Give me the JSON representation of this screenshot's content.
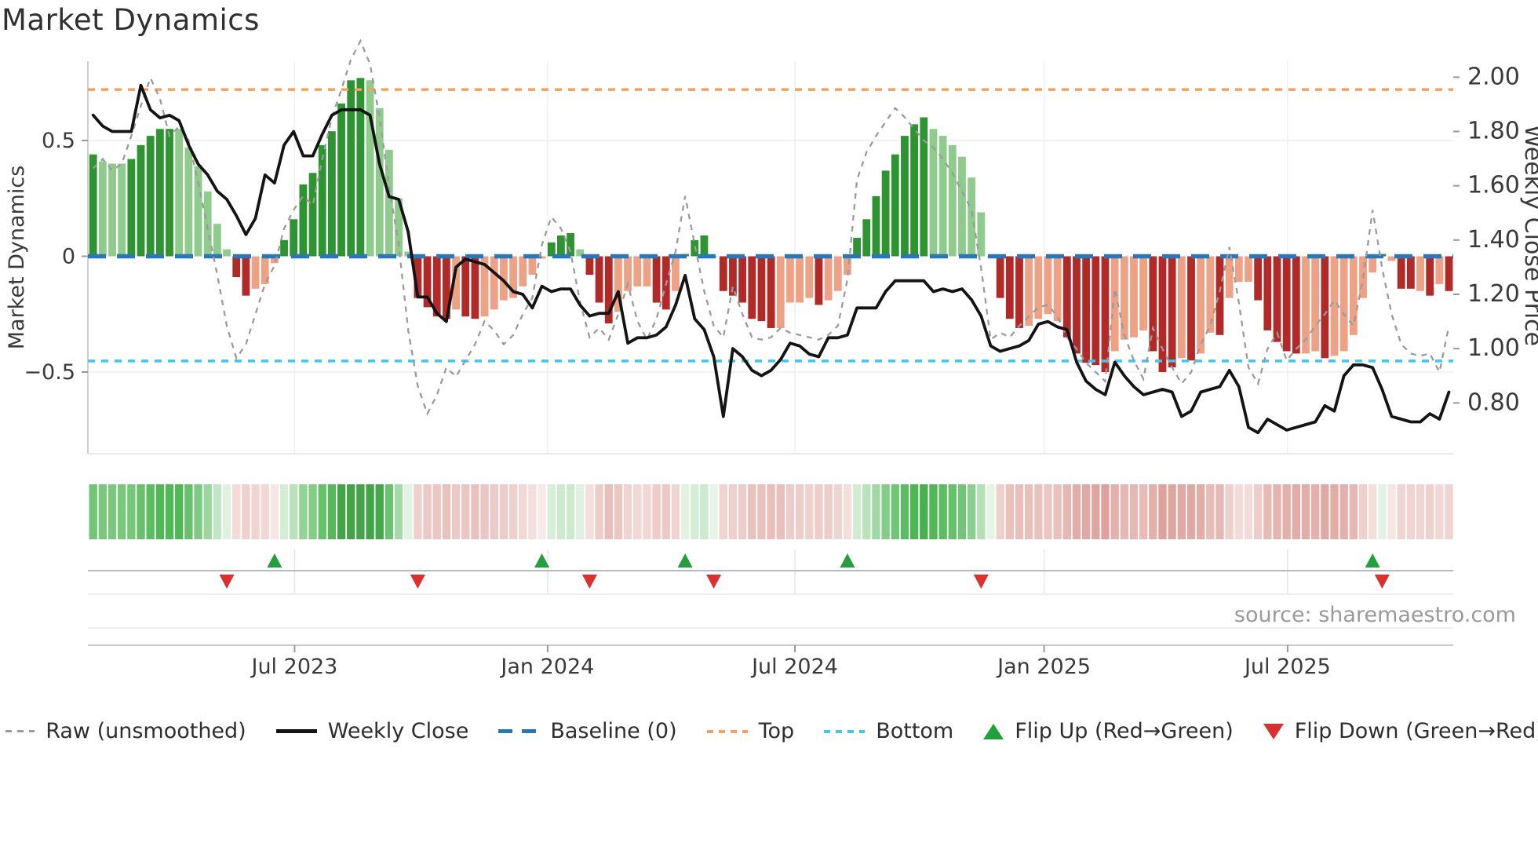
{
  "title": "Market Dynamics",
  "source": "source: sharemaestro.com",
  "left_axis": {
    "label": "Market Dynamics",
    "ticks": [
      {
        "value": 0.5,
        "label": "0.5"
      },
      {
        "value": 0.0,
        "label": "0"
      },
      {
        "value": -0.5,
        "label": "−0.5"
      }
    ],
    "ylim": [
      -0.85,
      0.84
    ]
  },
  "right_axis": {
    "label": "Weekly Close Price",
    "ticks": [
      {
        "value": 2.0,
        "label": "2.00"
      },
      {
        "value": 1.8,
        "label": "1.80"
      },
      {
        "value": 1.6,
        "label": "1.60"
      },
      {
        "value": 1.4,
        "label": "1.40"
      },
      {
        "value": 1.2,
        "label": "1.20"
      },
      {
        "value": 1.0,
        "label": "1.00"
      },
      {
        "value": 0.8,
        "label": "0.80"
      }
    ],
    "ylim": [
      0.61,
      2.06
    ]
  },
  "x_axis": {
    "ticks": [
      {
        "label": "Jul 2023",
        "week_index": 21.1
      },
      {
        "label": "Jan 2024",
        "week_index": 47.6
      },
      {
        "label": "Jul 2024",
        "week_index": 73.5
      },
      {
        "label": "Jan 2025",
        "week_index": 99.6
      },
      {
        "label": "Jul 2025",
        "week_index": 125.1
      }
    ]
  },
  "reference_lines": {
    "baseline": {
      "label": "Baseline (0)",
      "value": 0.0,
      "color": "#2878b8"
    },
    "top": {
      "label": "Top",
      "value": 0.72,
      "color": "#f2a25c"
    },
    "bottom": {
      "label": "Bottom",
      "value": -0.452,
      "color": "#3fc8e9"
    }
  },
  "colors": {
    "bar_strong_green": "#2e9331",
    "bar_weak_green": "#8fcb8c",
    "bar_strong_red": "#b22a28",
    "bar_weak_red": "#eda185",
    "close_line": "#141414",
    "raw_line": "#9b9b9b",
    "flip_up": "#22a03c",
    "flip_down": "#dc2f2f"
  },
  "legend": {
    "items": [
      {
        "label": "Raw (unsmoothed)"
      },
      {
        "label": "Weekly Close"
      },
      {
        "label": "Baseline (0)"
      },
      {
        "label": "Top"
      },
      {
        "label": "Bottom"
      },
      {
        "label": "Flip Up (Red→Green)"
      },
      {
        "label": "Flip Down (Green→Red)"
      }
    ]
  },
  "chart_data": {
    "type": "bar+line combo with heatmap ribbon and flip markers",
    "x_unit": "weekly bars, index 0..142 (≈ Feb 2023 → Nov 2025)",
    "bars_axis": "left (Market Dynamics, −0.85..0.84)",
    "line_axis": "right (Weekly Close Price, 0.61..2.06)",
    "bars": [
      0.44,
      0.41,
      0.4,
      0.4,
      0.42,
      0.48,
      0.52,
      0.55,
      0.55,
      0.55,
      0.47,
      0.39,
      0.28,
      0.14,
      0.03,
      -0.09,
      -0.17,
      -0.14,
      -0.12,
      -0.03,
      0.07,
      0.16,
      0.31,
      0.36,
      0.48,
      0.54,
      0.66,
      0.76,
      0.77,
      0.76,
      0.64,
      0.46,
      0.25,
      0.02,
      -0.18,
      -0.22,
      -0.26,
      -0.27,
      -0.23,
      -0.26,
      -0.27,
      -0.26,
      -0.23,
      -0.19,
      -0.18,
      -0.13,
      -0.08,
      -0.01,
      0.06,
      0.09,
      0.1,
      0.03,
      -0.08,
      -0.2,
      -0.29,
      -0.24,
      -0.15,
      -0.13,
      -0.13,
      -0.2,
      -0.23,
      -0.15,
      0.01,
      0.07,
      0.09,
      0.0,
      -0.15,
      -0.17,
      -0.2,
      -0.27,
      -0.28,
      -0.31,
      -0.31,
      -0.2,
      -0.2,
      -0.18,
      -0.21,
      -0.19,
      -0.15,
      -0.08,
      0.08,
      0.16,
      0.26,
      0.37,
      0.44,
      0.52,
      0.57,
      0.6,
      0.55,
      0.52,
      0.48,
      0.43,
      0.34,
      0.19,
      0.0,
      -0.18,
      -0.27,
      -0.31,
      -0.3,
      -0.27,
      -0.25,
      -0.28,
      -0.35,
      -0.42,
      -0.46,
      -0.47,
      -0.5,
      -0.41,
      -0.36,
      -0.35,
      -0.32,
      -0.41,
      -0.5,
      -0.48,
      -0.44,
      -0.45,
      -0.42,
      -0.33,
      -0.34,
      -0.18,
      -0.11,
      -0.11,
      -0.19,
      -0.32,
      -0.37,
      -0.41,
      -0.42,
      -0.42,
      -0.41,
      -0.44,
      -0.43,
      -0.41,
      -0.34,
      -0.18,
      -0.07,
      0.01,
      -0.02,
      -0.14,
      -0.14,
      -0.15,
      -0.17,
      -0.12,
      -0.15
    ],
    "bar_strength": [
      "s",
      "w",
      "w",
      "w",
      "s",
      "s",
      "s",
      "s",
      "s",
      "w",
      "w",
      "w",
      "w",
      "w",
      "w",
      "s",
      "s",
      "w",
      "w",
      "w",
      "s",
      "s",
      "s",
      "s",
      "s",
      "s",
      "s",
      "s",
      "s",
      "w",
      "w",
      "w",
      "w",
      "w",
      "s",
      "s",
      "s",
      "s",
      "w",
      "s",
      "s",
      "w",
      "w",
      "w",
      "w",
      "w",
      "w",
      "w",
      "s",
      "s",
      "s",
      "w",
      "s",
      "s",
      "s",
      "w",
      "w",
      "w",
      "w",
      "s",
      "s",
      "w",
      "s",
      "s",
      "s",
      "w",
      "s",
      "s",
      "s",
      "s",
      "s",
      "s",
      "w",
      "w",
      "w",
      "w",
      "s",
      "w",
      "w",
      "w",
      "s",
      "s",
      "s",
      "s",
      "s",
      "s",
      "s",
      "s",
      "w",
      "w",
      "w",
      "w",
      "w",
      "w",
      "w",
      "s",
      "s",
      "s",
      "w",
      "w",
      "w",
      "w",
      "s",
      "s",
      "s",
      "s",
      "s",
      "w",
      "w",
      "w",
      "w",
      "s",
      "s",
      "s",
      "w",
      "s",
      "w",
      "w",
      "s",
      "w",
      "w",
      "w",
      "s",
      "s",
      "s",
      "s",
      "s",
      "w",
      "w",
      "s",
      "w",
      "w",
      "w",
      "w",
      "w",
      "s",
      "w",
      "s",
      "s",
      "w",
      "s",
      "w",
      "s"
    ],
    "weekly_close": [
      1.86,
      1.82,
      1.8,
      1.8,
      1.8,
      1.97,
      1.88,
      1.85,
      1.86,
      1.84,
      1.75,
      1.68,
      1.64,
      1.58,
      1.55,
      1.49,
      1.42,
      1.48,
      1.64,
      1.61,
      1.75,
      1.8,
      1.71,
      1.71,
      1.79,
      1.86,
      1.88,
      1.88,
      1.88,
      1.86,
      1.68,
      1.56,
      1.55,
      1.43,
      1.19,
      1.19,
      1.13,
      1.1,
      1.3,
      1.33,
      1.32,
      1.31,
      1.28,
      1.25,
      1.21,
      1.2,
      1.15,
      1.23,
      1.21,
      1.22,
      1.22,
      1.16,
      1.12,
      1.13,
      1.13,
      1.21,
      1.02,
      1.04,
      1.04,
      1.05,
      1.08,
      1.16,
      1.27,
      1.11,
      1.07,
      0.97,
      0.75,
      1.0,
      0.97,
      0.92,
      0.9,
      0.92,
      0.96,
      1.02,
      1.01,
      0.98,
      0.97,
      1.04,
      1.04,
      1.05,
      1.15,
      1.15,
      1.15,
      1.21,
      1.25,
      1.25,
      1.25,
      1.25,
      1.21,
      1.22,
      1.21,
      1.22,
      1.18,
      1.12,
      1.01,
      0.99,
      1.0,
      1.01,
      1.03,
      1.09,
      1.1,
      1.08,
      1.07,
      0.95,
      0.88,
      0.85,
      0.83,
      0.95,
      0.9,
      0.86,
      0.83,
      0.84,
      0.85,
      0.84,
      0.75,
      0.77,
      0.84,
      0.85,
      0.86,
      0.92,
      0.86,
      0.71,
      0.69,
      0.74,
      0.72,
      0.7,
      0.71,
      0.72,
      0.73,
      0.79,
      0.77,
      0.9,
      0.94,
      0.94,
      0.93,
      0.85,
      0.75,
      0.74,
      0.73,
      0.73,
      0.76,
      0.74,
      0.84
    ],
    "raw": [
      0.38,
      0.42,
      0.37,
      0.4,
      0.52,
      0.65,
      0.77,
      0.68,
      0.52,
      0.56,
      0.5,
      0.32,
      0.12,
      -0.08,
      -0.3,
      -0.44,
      -0.38,
      -0.25,
      -0.12,
      -0.04,
      0.12,
      0.2,
      0.26,
      0.22,
      0.42,
      0.6,
      0.72,
      0.85,
      0.93,
      0.83,
      0.6,
      0.3,
      0.05,
      -0.32,
      -0.56,
      -0.68,
      -0.6,
      -0.48,
      -0.52,
      -0.45,
      -0.38,
      -0.28,
      -0.32,
      -0.38,
      -0.34,
      -0.25,
      -0.18,
      0.05,
      0.17,
      0.12,
      0.02,
      -0.2,
      -0.35,
      -0.31,
      -0.36,
      -0.25,
      -0.12,
      -0.28,
      -0.36,
      -0.27,
      -0.12,
      0.02,
      0.26,
      0.05,
      -0.15,
      -0.3,
      -0.35,
      -0.13,
      -0.25,
      -0.35,
      -0.36,
      -0.35,
      -0.31,
      -0.33,
      -0.34,
      -0.35,
      -0.36,
      -0.34,
      -0.3,
      -0.1,
      0.33,
      0.45,
      0.52,
      0.58,
      0.64,
      0.6,
      0.55,
      0.5,
      0.47,
      0.42,
      0.36,
      0.28,
      0.2,
      -0.05,
      -0.36,
      -0.33,
      -0.35,
      -0.3,
      -0.26,
      -0.22,
      -0.21,
      -0.26,
      -0.35,
      -0.4,
      -0.46,
      -0.5,
      -0.54,
      -0.14,
      -0.34,
      -0.45,
      -0.53,
      -0.31,
      -0.4,
      -0.48,
      -0.55,
      -0.5,
      -0.38,
      -0.3,
      -0.15,
      0.04,
      -0.2,
      -0.48,
      -0.55,
      -0.4,
      -0.33,
      -0.45,
      -0.4,
      -0.36,
      -0.3,
      -0.25,
      -0.19,
      -0.25,
      -0.3,
      -0.1,
      0.2,
      -0.05,
      -0.25,
      -0.38,
      -0.42,
      -0.43,
      -0.42,
      -0.5,
      -0.3
    ],
    "flip_up_indices": [
      19,
      47,
      62,
      79,
      134
    ],
    "flip_down_indices": [
      14,
      34,
      52,
      65,
      93,
      135
    ],
    "heatmap": "ribbon of 143 cells, color = sign/magnitude of bars series (green positive, red negative)"
  }
}
